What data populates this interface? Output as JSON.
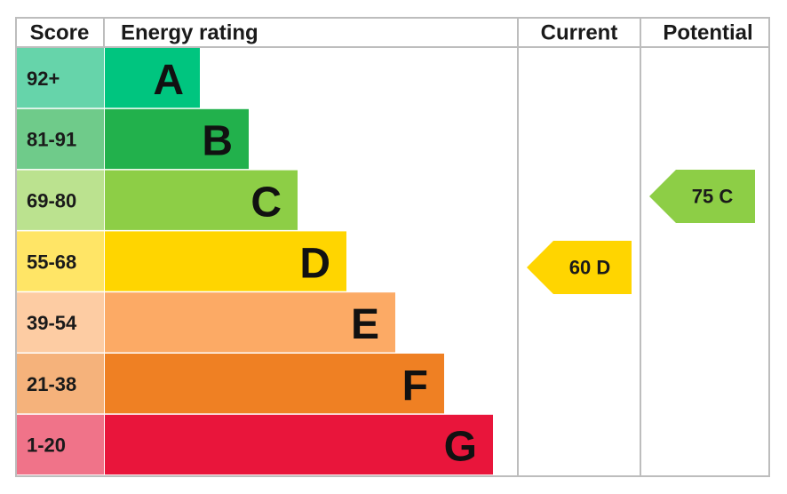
{
  "header": {
    "score": "Score",
    "energy_rating": "Energy rating",
    "current": "Current",
    "potential": "Potential"
  },
  "bands": [
    {
      "score": "92+",
      "letter": "A",
      "color": "#00c57f",
      "score_color": "#66d4aa"
    },
    {
      "score": "81-91",
      "letter": "B",
      "color": "#22b14c",
      "score_color": "#6fcb8a"
    },
    {
      "score": "69-80",
      "letter": "C",
      "color": "#8dce46",
      "score_color": "#bbe28f"
    },
    {
      "score": "55-68",
      "letter": "D",
      "color": "#ffd500",
      "score_color": "#ffe566"
    },
    {
      "score": "39-54",
      "letter": "E",
      "color": "#fcaa65",
      "score_color": "#fdcca3"
    },
    {
      "score": "21-38",
      "letter": "F",
      "color": "#ef8023",
      "score_color": "#f5b27b"
    },
    {
      "score": "1-20",
      "letter": "G",
      "color": "#e9153b",
      "score_color": "#f07389"
    }
  ],
  "current": {
    "label": "60 D",
    "color": "#ffd500"
  },
  "potential": {
    "label": "75 C",
    "color": "#8dce46"
  }
}
